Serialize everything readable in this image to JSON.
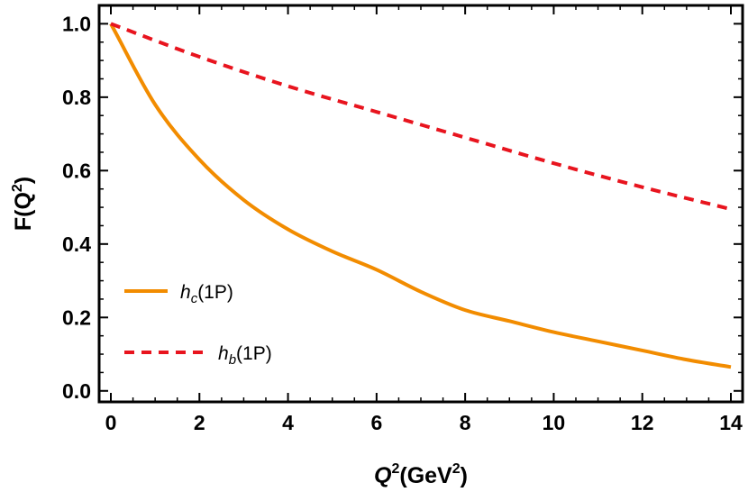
{
  "chart_data": {
    "type": "line",
    "xlim": [
      0,
      14
    ],
    "ylim": [
      -0.03,
      1.05
    ],
    "x_ticks": [
      "0",
      "2",
      "4",
      "6",
      "8",
      "10",
      "12",
      "14"
    ],
    "x_tick_values": [
      0,
      2,
      4,
      6,
      8,
      10,
      12,
      14
    ],
    "y_ticks": [
      "0.0",
      "0.2",
      "0.4",
      "0.6",
      "0.8",
      "1.0"
    ],
    "y_tick_values": [
      0.0,
      0.2,
      0.4,
      0.6,
      0.8,
      1.0
    ],
    "xlabel": {
      "base": "Q",
      "sup": "2",
      "unit_open": "(GeV",
      "unit_sup": "2",
      "unit_close": ")"
    },
    "ylabel": {
      "prefix": "F(Q",
      "sup": "2",
      "suffix": ")"
    },
    "grid": false,
    "legend_position": "bottom-left",
    "series": [
      {
        "name": "h_c(1P)",
        "legend": {
          "main": "h",
          "sub": "c",
          "rest": "(1P)"
        },
        "color": "#F28C00",
        "dash": "solid",
        "x": [
          0,
          1,
          2,
          3,
          4,
          5,
          6,
          7,
          8,
          9,
          10,
          11,
          12,
          13,
          14
        ],
        "y": [
          1.0,
          0.78,
          0.63,
          0.52,
          0.44,
          0.38,
          0.33,
          0.27,
          0.22,
          0.19,
          0.16,
          0.135,
          0.11,
          0.085,
          0.065
        ]
      },
      {
        "name": "h_b(1P)",
        "legend": {
          "main": "h",
          "sub": "b",
          "rest": "(1P)"
        },
        "color": "#E8141E",
        "dash": "dashed",
        "x": [
          0,
          2,
          4,
          6,
          8,
          10,
          12,
          14
        ],
        "y": [
          1.0,
          0.91,
          0.83,
          0.76,
          0.69,
          0.62,
          0.555,
          0.495
        ]
      }
    ]
  }
}
